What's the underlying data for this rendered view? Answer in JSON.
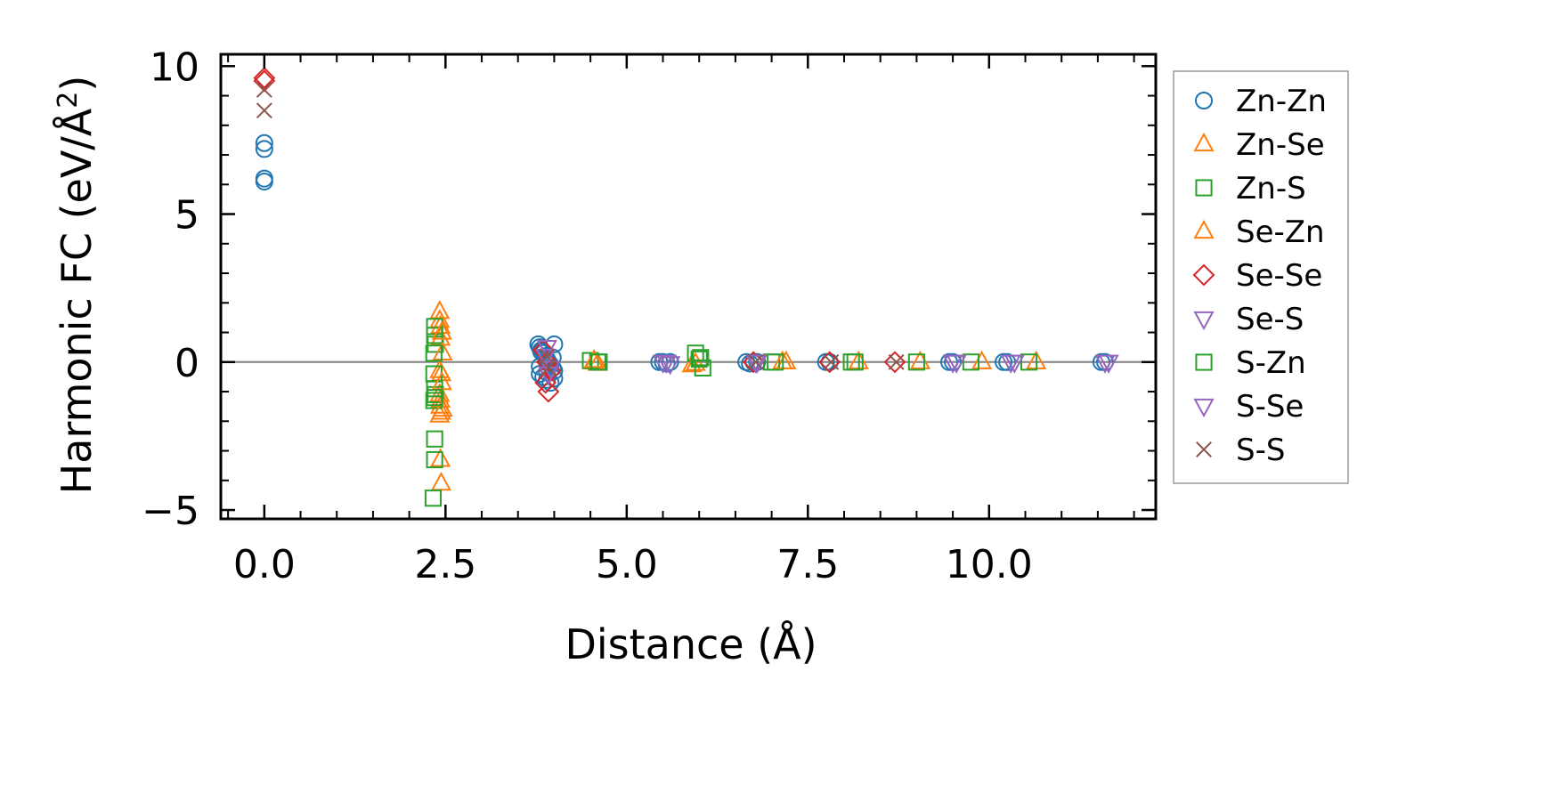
{
  "chart_data": {
    "type": "scatter",
    "title": "",
    "xlabel": "Distance (Å)",
    "ylabel_main": "Harmonic FC (eV/Å",
    "ylabel_sup": "2",
    "ylabel_close": ")",
    "xlim": [
      -0.6,
      12.3
    ],
    "ylim": [
      -5.3,
      10.4
    ],
    "xticks": [
      0.0,
      2.5,
      5.0,
      7.5,
      10.0
    ],
    "xtick_labels": [
      "0.0",
      "2.5",
      "5.0",
      "7.5",
      "10.0"
    ],
    "yticks": [
      -5,
      0,
      5,
      10
    ],
    "ytick_labels": [
      "−5",
      "0",
      "5",
      "10"
    ],
    "zero_line": true,
    "grid": false,
    "legend_position": "outside-right",
    "series": [
      {
        "name": "Zn-Zn",
        "marker": "circle",
        "color": "#1f77b4",
        "x": [
          0.0,
          0.0,
          0.0,
          0.0,
          3.78,
          3.8,
          3.82,
          3.85,
          3.88,
          3.9,
          3.92,
          3.95,
          3.98,
          4.0,
          3.8,
          3.85,
          3.9,
          3.95,
          4.0,
          3.82,
          3.98,
          3.8,
          3.9,
          4.0,
          5.45,
          5.5,
          5.55,
          5.6,
          6.65,
          6.7,
          6.75,
          6.8,
          7.75,
          7.8,
          9.45,
          9.5,
          10.2,
          10.25,
          11.55,
          11.6
        ],
        "y": [
          7.4,
          7.2,
          6.2,
          6.1,
          0.6,
          0.5,
          0.4,
          0.3,
          0.2,
          0.1,
          0.0,
          -0.1,
          -0.2,
          -0.3,
          -0.4,
          -0.5,
          -0.6,
          -0.7,
          0.6,
          0.35,
          0.15,
          -0.15,
          -0.35,
          -0.55,
          0.0,
          0.0,
          -0.05,
          0.0,
          0.0,
          -0.05,
          0.0,
          0.0,
          0.0,
          0.0,
          0.0,
          0.0,
          0.0,
          0.0,
          0.0,
          0.0
        ]
      },
      {
        "name": "Zn-Se",
        "marker": "triangle-up",
        "color": "#ff7f0e",
        "x": [
          2.42,
          2.42,
          2.43,
          2.43,
          2.42,
          2.44,
          2.42,
          2.43,
          2.43,
          2.44,
          2.42,
          2.43,
          2.44,
          4.55,
          4.6,
          5.9,
          5.95,
          7.2,
          8.2,
          9.05,
          9.9,
          10.65
        ],
        "y": [
          1.7,
          1.4,
          1.2,
          0.8,
          -0.3,
          -0.4,
          -1.1,
          -1.3,
          -1.5,
          -1.7,
          -1.8,
          -3.3,
          -4.1,
          0.0,
          -0.05,
          -0.1,
          -0.05,
          0.0,
          0.0,
          0.0,
          0.0,
          0.0
        ]
      },
      {
        "name": "Zn-S",
        "marker": "square",
        "color": "#2ca02c",
        "x": [
          2.35,
          2.35,
          2.36,
          2.34,
          2.35,
          2.36,
          2.34,
          2.35,
          2.35,
          2.33,
          4.5,
          4.6,
          5.95,
          6.0,
          6.05,
          7.0,
          8.1,
          9.0,
          9.75,
          10.55
        ],
        "y": [
          1.2,
          0.9,
          0.6,
          -0.4,
          -0.9,
          -1.1,
          -1.3,
          -2.6,
          -3.3,
          -4.6,
          0.05,
          0.0,
          0.3,
          0.1,
          -0.2,
          0.0,
          0.0,
          0.0,
          0.0,
          0.0
        ]
      },
      {
        "name": "Se-Zn",
        "marker": "triangle-up",
        "color": "#ff7f0e",
        "x": [
          2.45,
          2.46,
          2.45,
          2.46,
          4.55,
          7.15
        ],
        "y": [
          1.0,
          0.3,
          -0.7,
          -1.6,
          0.05,
          0.0
        ]
      },
      {
        "name": "Se-Se",
        "marker": "diamond",
        "color": "#d62728",
        "x": [
          0.0,
          0.0,
          3.85,
          3.9,
          3.95,
          3.88,
          3.92,
          6.75,
          7.8,
          8.7
        ],
        "y": [
          9.6,
          9.5,
          0.4,
          0.0,
          -0.3,
          -0.7,
          -1.0,
          0.0,
          0.0,
          0.0
        ]
      },
      {
        "name": "Se-S",
        "marker": "triangle-down",
        "color": "#9467bd",
        "x": [
          3.9,
          3.92,
          5.55,
          5.6,
          6.8,
          9.55,
          10.3,
          11.65
        ],
        "y": [
          0.5,
          -0.4,
          0.0,
          -0.05,
          0.0,
          0.0,
          0.0,
          0.0
        ]
      },
      {
        "name": "S-Zn",
        "marker": "square",
        "color": "#2ca02c",
        "x": [
          2.34,
          2.35,
          4.62,
          6.02,
          7.05,
          8.15
        ],
        "y": [
          0.3,
          -1.2,
          0.0,
          0.15,
          0.0,
          0.0
        ]
      },
      {
        "name": "S-Se",
        "marker": "triangle-down",
        "color": "#9467bd",
        "x": [
          3.88,
          3.95,
          5.5,
          6.78,
          9.5,
          10.35,
          11.6
        ],
        "y": [
          0.2,
          -0.2,
          0.0,
          0.0,
          0.0,
          0.0,
          0.0
        ]
      },
      {
        "name": "S-S",
        "marker": "x",
        "color": "#8c564b",
        "x": [
          0.0,
          0.0,
          3.9,
          3.92,
          6.78,
          7.82,
          8.72
        ],
        "y": [
          9.2,
          8.5,
          0.2,
          -0.2,
          0.0,
          0.0,
          0.0
        ]
      }
    ]
  }
}
